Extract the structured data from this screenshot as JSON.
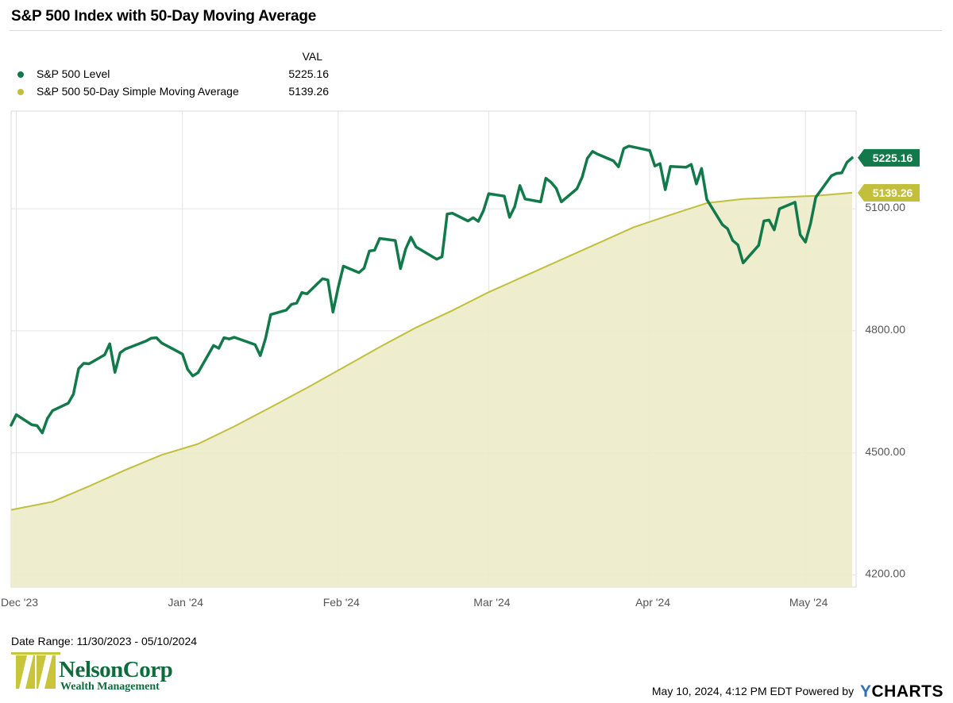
{
  "header": {
    "title": "S&P 500 Index with 50-Day Moving Average"
  },
  "legend": {
    "value_header": "VAL",
    "items": [
      {
        "label": "S&P 500 Level",
        "value": "5225.16",
        "color": "#127a4a"
      },
      {
        "label": "S&P 500 50-Day Simple Moving Average",
        "value": "5139.26",
        "color": "#c1bf3c"
      }
    ]
  },
  "chart_data": {
    "type": "line",
    "title": "S&P 500 Index with 50-Day Moving Average",
    "y_ticks": [
      "4200.00",
      "4500.00",
      "4800.00",
      "5100.00"
    ],
    "y_tick_values": [
      4200,
      4500,
      4800,
      5100
    ],
    "ylim": [
      4170,
      5340
    ],
    "x_ticks": [
      {
        "label": "Dec '23",
        "date": "2023-12-01"
      },
      {
        "label": "Jan '24",
        "date": "2024-01-02"
      },
      {
        "label": "Feb '24",
        "date": "2024-02-01"
      },
      {
        "label": "Mar '24",
        "date": "2024-03-01"
      },
      {
        "label": "Apr '24",
        "date": "2024-04-01"
      },
      {
        "label": "May '24",
        "date": "2024-05-01"
      }
    ],
    "x_range": [
      "2023-11-30",
      "2024-05-10"
    ],
    "grid": true,
    "series": [
      {
        "name": "S&P 500 Level",
        "color": "#127a4a",
        "end_label": "5225.16",
        "points": [
          [
            "2023-11-30",
            4568
          ],
          [
            "2023-12-01",
            4594
          ],
          [
            "2023-12-04",
            4569
          ],
          [
            "2023-12-05",
            4567
          ],
          [
            "2023-12-06",
            4549
          ],
          [
            "2023-12-07",
            4585
          ],
          [
            "2023-12-08",
            4604
          ],
          [
            "2023-12-11",
            4622
          ],
          [
            "2023-12-12",
            4644
          ],
          [
            "2023-12-13",
            4707
          ],
          [
            "2023-12-14",
            4720
          ],
          [
            "2023-12-15",
            4719
          ],
          [
            "2023-12-18",
            4741
          ],
          [
            "2023-12-19",
            4768
          ],
          [
            "2023-12-20",
            4698
          ],
          [
            "2023-12-21",
            4746
          ],
          [
            "2023-12-22",
            4755
          ],
          [
            "2023-12-26",
            4775
          ],
          [
            "2023-12-27",
            4782
          ],
          [
            "2023-12-28",
            4783
          ],
          [
            "2023-12-29",
            4770
          ],
          [
            "2024-01-02",
            4743
          ],
          [
            "2024-01-03",
            4705
          ],
          [
            "2024-01-04",
            4689
          ],
          [
            "2024-01-05",
            4697
          ],
          [
            "2024-01-08",
            4764
          ],
          [
            "2024-01-09",
            4757
          ],
          [
            "2024-01-10",
            4783
          ],
          [
            "2024-01-11",
            4780
          ],
          [
            "2024-01-12",
            4784
          ],
          [
            "2024-01-16",
            4766
          ],
          [
            "2024-01-17",
            4739
          ],
          [
            "2024-01-18",
            4781
          ],
          [
            "2024-01-19",
            4840
          ],
          [
            "2024-01-22",
            4851
          ],
          [
            "2024-01-23",
            4865
          ],
          [
            "2024-01-24",
            4868
          ],
          [
            "2024-01-25",
            4894
          ],
          [
            "2024-01-26",
            4891
          ],
          [
            "2024-01-29",
            4928
          ],
          [
            "2024-01-30",
            4925
          ],
          [
            "2024-01-31",
            4846
          ],
          [
            "2024-02-01",
            4906
          ],
          [
            "2024-02-02",
            4959
          ],
          [
            "2024-02-05",
            4943
          ],
          [
            "2024-02-06",
            4954
          ],
          [
            "2024-02-07",
            4996
          ],
          [
            "2024-02-08",
            4998
          ],
          [
            "2024-02-09",
            5027
          ],
          [
            "2024-02-12",
            5022
          ],
          [
            "2024-02-13",
            4953
          ],
          [
            "2024-02-14",
            5001
          ],
          [
            "2024-02-15",
            5030
          ],
          [
            "2024-02-16",
            5006
          ],
          [
            "2024-02-20",
            4976
          ],
          [
            "2024-02-21",
            4982
          ],
          [
            "2024-02-22",
            5087
          ],
          [
            "2024-02-23",
            5089
          ],
          [
            "2024-02-26",
            5070
          ],
          [
            "2024-02-27",
            5078
          ],
          [
            "2024-02-28",
            5069
          ],
          [
            "2024-02-29",
            5096
          ],
          [
            "2024-03-01",
            5137
          ],
          [
            "2024-03-04",
            5131
          ],
          [
            "2024-03-05",
            5079
          ],
          [
            "2024-03-06",
            5105
          ],
          [
            "2024-03-07",
            5157
          ],
          [
            "2024-03-08",
            5124
          ],
          [
            "2024-03-11",
            5117
          ],
          [
            "2024-03-12",
            5175
          ],
          [
            "2024-03-13",
            5165
          ],
          [
            "2024-03-14",
            5150
          ],
          [
            "2024-03-15",
            5117
          ],
          [
            "2024-03-18",
            5149
          ],
          [
            "2024-03-19",
            5178
          ],
          [
            "2024-03-20",
            5224
          ],
          [
            "2024-03-21",
            5241
          ],
          [
            "2024-03-22",
            5234
          ],
          [
            "2024-03-25",
            5218
          ],
          [
            "2024-03-26",
            5203
          ],
          [
            "2024-03-27",
            5248
          ],
          [
            "2024-03-28",
            5254
          ],
          [
            "2024-04-01",
            5243
          ],
          [
            "2024-04-02",
            5205
          ],
          [
            "2024-04-03",
            5211
          ],
          [
            "2024-04-04",
            5147
          ],
          [
            "2024-04-05",
            5204
          ],
          [
            "2024-04-08",
            5202
          ],
          [
            "2024-04-09",
            5209
          ],
          [
            "2024-04-10",
            5161
          ],
          [
            "2024-04-11",
            5199
          ],
          [
            "2024-04-12",
            5123
          ],
          [
            "2024-04-15",
            5061
          ],
          [
            "2024-04-16",
            5051
          ],
          [
            "2024-04-17",
            5022
          ],
          [
            "2024-04-18",
            5011
          ],
          [
            "2024-04-19",
            4967
          ],
          [
            "2024-04-22",
            5010
          ],
          [
            "2024-04-23",
            5070
          ],
          [
            "2024-04-24",
            5072
          ],
          [
            "2024-04-25",
            5048
          ],
          [
            "2024-04-26",
            5100
          ],
          [
            "2024-04-29",
            5116
          ],
          [
            "2024-04-30",
            5036
          ],
          [
            "2024-05-01",
            5018
          ],
          [
            "2024-05-02",
            5064
          ],
          [
            "2024-05-03",
            5128
          ],
          [
            "2024-05-06",
            5181
          ],
          [
            "2024-05-07",
            5187
          ],
          [
            "2024-05-08",
            5188
          ],
          [
            "2024-05-09",
            5214
          ],
          [
            "2024-05-10",
            5225.16
          ]
        ]
      },
      {
        "name": "S&P 500 50-Day Simple Moving Average",
        "color": "#c1bf3c",
        "fill": "#ecebc9",
        "end_label": "5139.26",
        "points": [
          [
            "2023-11-30",
            4360
          ],
          [
            "2023-12-08",
            4380
          ],
          [
            "2023-12-15",
            4418
          ],
          [
            "2023-12-22",
            4458
          ],
          [
            "2023-12-29",
            4495
          ],
          [
            "2024-01-05",
            4522
          ],
          [
            "2024-01-12",
            4565
          ],
          [
            "2024-01-19",
            4612
          ],
          [
            "2024-01-26",
            4660
          ],
          [
            "2024-02-02",
            4710
          ],
          [
            "2024-02-09",
            4760
          ],
          [
            "2024-02-16",
            4808
          ],
          [
            "2024-02-23",
            4850
          ],
          [
            "2024-03-01",
            4895
          ],
          [
            "2024-03-08",
            4935
          ],
          [
            "2024-03-15",
            4975
          ],
          [
            "2024-03-22",
            5015
          ],
          [
            "2024-03-29",
            5055
          ],
          [
            "2024-04-05",
            5085
          ],
          [
            "2024-04-12",
            5114
          ],
          [
            "2024-04-19",
            5124
          ],
          [
            "2024-04-26",
            5128
          ],
          [
            "2024-05-03",
            5132
          ],
          [
            "2024-05-10",
            5139.26
          ]
        ]
      }
    ]
  },
  "footer": {
    "date_range": "Date Range: 11/30/2023 - 05/10/2024",
    "timestamp": "May 10, 2024, 4:12 PM EDT Powered by",
    "brand_y": "Y",
    "brand_rest": "CHARTS"
  },
  "logo": {
    "name": "NelsonCorp",
    "subtitle": "Wealth Management",
    "colors": [
      "#c9c53a",
      "#0e6b3b"
    ]
  }
}
